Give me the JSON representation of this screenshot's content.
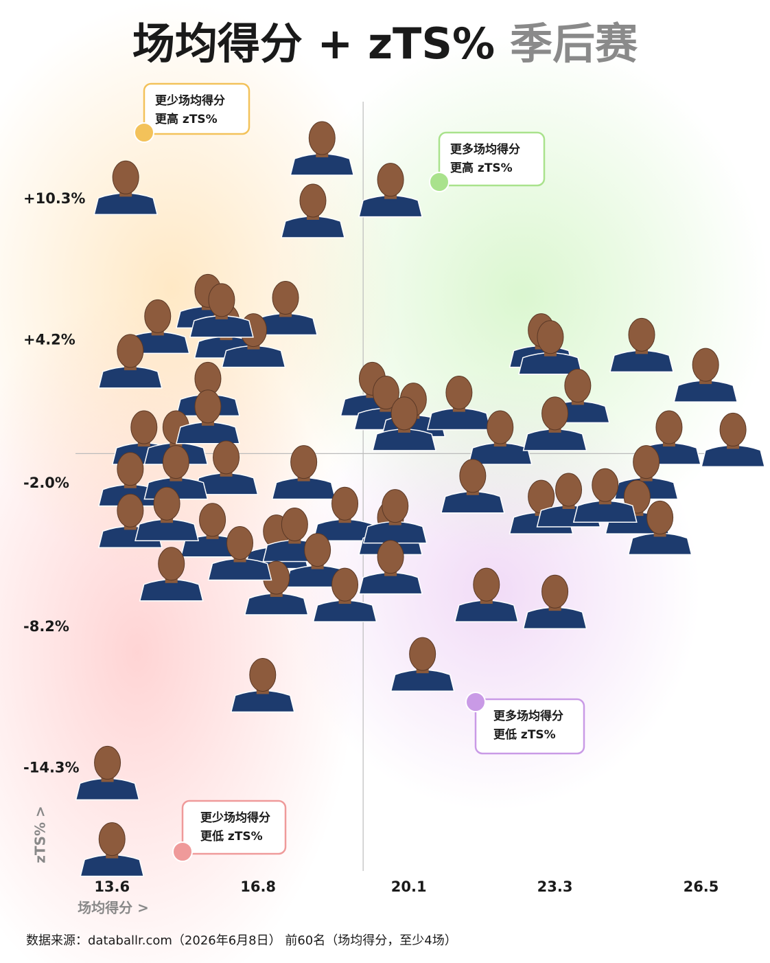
{
  "chart_data": {
    "type": "scatter",
    "title": "场均得分 + zTS%",
    "subtitle": "季后赛",
    "x_label": "场均得分 >",
    "y_label": "zTS% >",
    "source": "数据来源：databallr.com（2026年6月8日） 前60名（场均得分，至少4场）",
    "xlim": [
      12.8,
      27.8
    ],
    "ylim": [
      -18.8,
      14.75
    ],
    "xticks": [
      13.6,
      16.8,
      20.1,
      23.3,
      26.5
    ],
    "yticks": [
      {
        "value": 10.3,
        "label": "+10.3%"
      },
      {
        "value": 4.2,
        "label": "+4.2%"
      },
      {
        "value": -2.0,
        "label": "-2.0%"
      },
      {
        "value": -8.2,
        "label": "-8.2%"
      },
      {
        "value": -14.3,
        "label": "-14.3%"
      }
    ],
    "xref": 19.1,
    "yref": -0.7,
    "annotations": [
      {
        "lines": [
          "更少场均得分",
          "更高 zTS%"
        ],
        "color": "#f3c25a"
      },
      {
        "lines": [
          "更多场均得分",
          "更高 zTS%"
        ],
        "color": "#a9e28c"
      },
      {
        "lines": [
          "更多场均得分",
          "更低 zTS%"
        ],
        "color": "#c99ae6"
      },
      {
        "lines": [
          "更少场均得分",
          "更低 zTS%"
        ],
        "color": "#ef9a9a"
      }
    ],
    "series": [
      {
        "color": "#1d3b6e",
        "x": [
          13.9,
          18.2,
          19.7,
          18.0,
          15.7,
          17.4,
          14.6,
          14.0,
          16.1,
          16.7,
          16.0,
          19.3,
          19.6,
          20.2,
          21.2,
          22.1,
          23.0,
          23.2,
          23.8,
          23.3,
          25.2,
          26.6,
          25.8,
          27.2,
          15.7,
          14.3,
          15.0,
          15.7,
          16.1,
          17.8,
          14.0,
          15.0,
          14.0,
          15.8,
          17.2,
          17.6,
          18.7,
          19.7,
          19.8,
          21.5,
          23.0,
          23.6,
          25.3,
          25.1,
          25.6,
          18.1,
          19.7,
          17.2,
          18.7,
          14.9,
          21.8,
          23.3,
          20.4,
          16.9,
          13.5,
          13.6,
          20.0,
          24.4,
          14.8,
          16.4
        ],
        "values": [
          11.0,
          12.7,
          10.9,
          10.0,
          6.1,
          5.8,
          5.0,
          3.5,
          4.8,
          4.4,
          5.7,
          2.3,
          1.7,
          1.4,
          1.7,
          0.2,
          4.4,
          4.1,
          2.0,
          0.8,
          4.2,
          2.9,
          0.2,
          0.1,
          2.3,
          0.2,
          0.2,
          1.1,
          -1.1,
          -1.3,
          -1.6,
          -1.3,
          -3.4,
          -3.8,
          -4.3,
          -4.0,
          -3.1,
          -3.7,
          -3.2,
          -1.9,
          -2.8,
          -2.5,
          -1.3,
          -2.8,
          -3.7,
          -5.1,
          -5.4,
          -6.3,
          -6.6,
          -5.7,
          -6.6,
          -6.9,
          -9.6,
          -10.5,
          -14.3,
          -17.6,
          0.8,
          -2.3,
          -3.1,
          -4.8
        ]
      }
    ]
  }
}
